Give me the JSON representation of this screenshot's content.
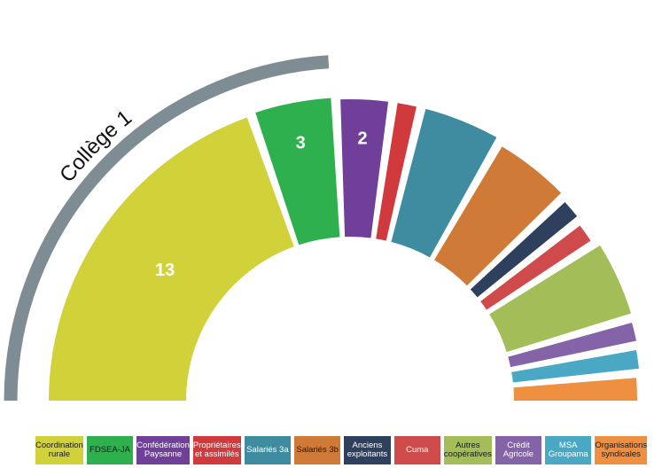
{
  "chart_data": {
    "type": "pie",
    "subtype": "semicircle",
    "group_label": "Collège 1",
    "series": [
      {
        "name": "Coordination rurale",
        "value": 13,
        "label": "13",
        "color": "#d1d13a"
      },
      {
        "name": "FDSEA-JA",
        "value": 3,
        "label": "3",
        "color": "#2fb04f"
      },
      {
        "name": "Confédération Paysanne",
        "value": 2,
        "label": "2",
        "color": "#703f9a"
      },
      {
        "name": "Propriétaires et assimilés",
        "value": 1,
        "label": "",
        "color": "#d03a3c"
      },
      {
        "name": "Salariés 3a",
        "value": 3,
        "label": "",
        "color": "#3f8ca0"
      },
      {
        "name": "Salariés 3b",
        "value": 3,
        "label": "",
        "color": "#d07a37"
      },
      {
        "name": "Anciens exploitants",
        "value": 1,
        "label": "",
        "color": "#2f405e"
      },
      {
        "name": "Cuma",
        "value": 1,
        "label": "",
        "color": "#cf4a4a"
      },
      {
        "name": "Autres coopératives",
        "value": 3,
        "label": "",
        "color": "#a3bd58"
      },
      {
        "name": "Crédit Agricole",
        "value": 1,
        "label": "",
        "color": "#8563a8"
      },
      {
        "name": "MSA Groupama",
        "value": 1,
        "label": "",
        "color": "#4aa8c4"
      },
      {
        "name": "Organisations syndicales",
        "value": 1,
        "label": "",
        "color": "#ef9040"
      }
    ]
  },
  "legend": [
    {
      "label": "Coordination\nrurale",
      "color": "#d1d13a",
      "dark": true
    },
    {
      "label": "FDSEA-JA",
      "color": "#2fb04f",
      "dark": true
    },
    {
      "label": "Confédération\nPaysanne",
      "color": "#703f9a",
      "dark": false
    },
    {
      "label": "Propriétaires\net assimilés",
      "color": "#d03a3c",
      "dark": false
    },
    {
      "label": "Salariés 3a",
      "color": "#3f8ca0",
      "dark": false
    },
    {
      "label": "Salariés 3b",
      "color": "#d07a37",
      "dark": true
    },
    {
      "label": "Anciens\nexploitants",
      "color": "#2f405e",
      "dark": false
    },
    {
      "label": "Cuma",
      "color": "#cf4a4a",
      "dark": false
    },
    {
      "label": "Autres\ncoopératives",
      "color": "#a3bd58",
      "dark": true
    },
    {
      "label": "Crédit\nAgricole",
      "color": "#8563a8",
      "dark": false
    },
    {
      "label": "MSA\nGroupama",
      "color": "#4aa8c4",
      "dark": false
    },
    {
      "label": "Organisations\nsyndicales",
      "color": "#ef9040",
      "dark": true
    }
  ]
}
